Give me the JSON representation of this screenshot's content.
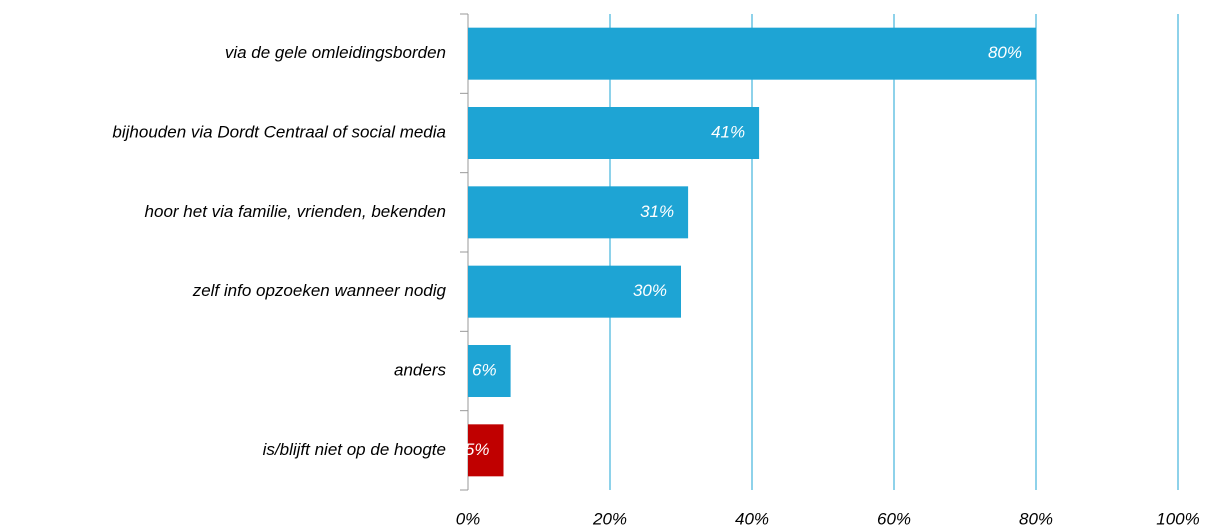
{
  "chart_data": {
    "type": "bar",
    "orientation": "horizontal",
    "categories": [
      "via de gele omleidingsborden",
      "bijhouden via Dordt Centraal of social media",
      "hoor het via familie, vrienden, bekenden",
      "zelf info opzoeken wanneer nodig",
      "anders",
      "is/blijft niet op de hoogte"
    ],
    "values": [
      80,
      41,
      31,
      30,
      6,
      5
    ],
    "value_labels": [
      "80%",
      "41%",
      "31%",
      "30%",
      "6%",
      "5%"
    ],
    "colors": [
      "#1ea4d4",
      "#1ea4d4",
      "#1ea4d4",
      "#1ea4d4",
      "#1ea4d4",
      "#c00000"
    ],
    "xlim": [
      0,
      100
    ],
    "xticks": [
      {
        "value": 0,
        "label": "0%"
      },
      {
        "value": 20,
        "label": "20%"
      },
      {
        "value": 40,
        "label": "40%"
      },
      {
        "value": 60,
        "label": "60%"
      },
      {
        "value": 80,
        "label": "80%"
      },
      {
        "value": 100,
        "label": "100%"
      }
    ],
    "grid": true
  }
}
